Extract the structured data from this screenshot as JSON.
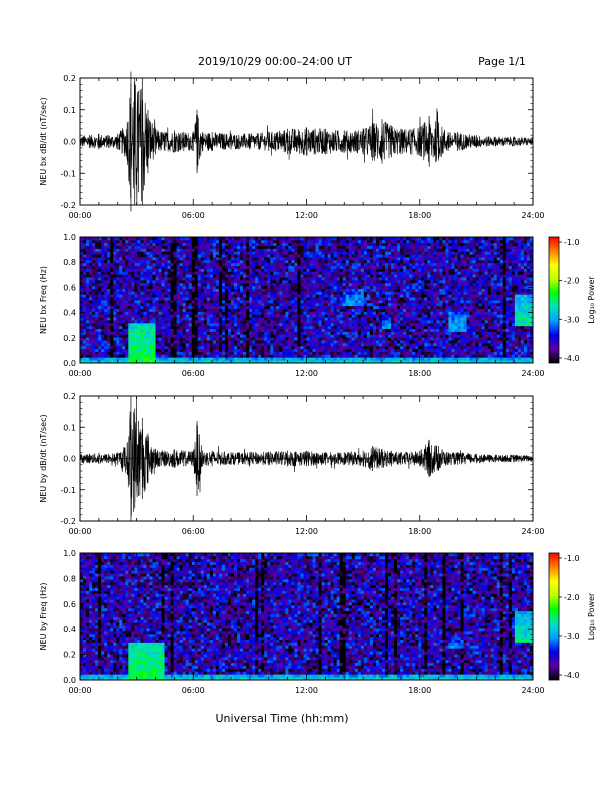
{
  "header": {
    "title": "2019/10/29  00:00–24:00 UT",
    "page": "Page 1/1"
  },
  "footer": {
    "xlabel": "Universal Time (hh:mm)"
  },
  "chart_data": [
    {
      "id": "bx-ts",
      "type": "line",
      "ylabel": "NEU bx dB/dt (nT/sec)",
      "ylim": [
        -0.2,
        0.2
      ],
      "xlim": [
        0,
        24
      ],
      "yticks": [
        "0.2",
        "0.1",
        "0.0",
        "-0.1",
        "-0.2"
      ],
      "xticks": [
        "00:00",
        "06:00",
        "12:00",
        "18:00",
        "24:00"
      ],
      "series": [
        {
          "x": [
            0,
            0.5,
            1,
            1.5,
            2,
            2.5,
            2.7,
            2.9,
            3.1,
            3.3,
            3.6,
            4,
            4.5,
            5,
            5.5,
            6,
            6.2,
            6.5,
            7,
            8,
            9,
            10,
            11,
            12,
            13,
            14,
            15,
            15.5,
            16,
            16.5,
            17,
            18,
            18.5,
            19,
            19.5,
            20,
            21,
            22,
            23,
            24
          ],
          "values": [
            0.02,
            0.02,
            0.025,
            0.02,
            0.025,
            0.06,
            0.22,
            0.2,
            0.16,
            0.2,
            0.1,
            0.04,
            0.03,
            0.035,
            0.03,
            0.03,
            0.1,
            0.03,
            0.03,
            0.025,
            0.025,
            0.03,
            0.04,
            0.045,
            0.04,
            0.035,
            0.04,
            0.06,
            0.07,
            0.05,
            0.04,
            0.045,
            0.08,
            0.06,
            0.03,
            0.03,
            0.02,
            0.015,
            0.015,
            0.012
          ]
        }
      ]
    },
    {
      "id": "bx-spec",
      "type": "heatmap",
      "ylabel": "NEU bx Freq (Hz)",
      "ylim": [
        0,
        1
      ],
      "xlim": [
        0,
        24
      ],
      "yticks": [
        "1.0",
        "0.8",
        "0.6",
        "0.4",
        "0.2",
        "0.0"
      ],
      "xticks": [
        "00:00",
        "06:00",
        "12:00",
        "18:00",
        "24:00"
      ],
      "colorbar": {
        "label": "Log₁₀ Power",
        "range": [
          -4,
          -1
        ],
        "ticks": [
          "-1.0",
          "-2.0",
          "-3.0",
          "-4.0"
        ],
        "colors": [
          "#000000",
          "#5a00a0",
          "#0000e6",
          "#00a0ff",
          "#00e0c0",
          "#00ff00",
          "#c0ff00",
          "#ffff00",
          "#ff8000",
          "#ff0000"
        ]
      },
      "features": [
        {
          "t": [
            2.5,
            4.0
          ],
          "f": [
            0.0,
            0.32
          ],
          "level": -2.4
        },
        {
          "t": [
            14.0,
            15.0
          ],
          "f": [
            0.45,
            0.6
          ],
          "level": -3.0
        },
        {
          "t": [
            16.0,
            16.5
          ],
          "f": [
            0.28,
            0.38
          ],
          "level": -3.0
        },
        {
          "t": [
            19.5,
            20.5
          ],
          "f": [
            0.25,
            0.42
          ],
          "level": -2.9
        },
        {
          "t": [
            23.0,
            24.0
          ],
          "f": [
            0.3,
            0.55
          ],
          "level": -2.6
        },
        {
          "t": [
            0,
            24
          ],
          "f": [
            0.0,
            0.04
          ],
          "level": -2.7
        }
      ]
    },
    {
      "id": "by-ts",
      "type": "line",
      "ylabel": "NEU by dB/dt (nT/sec)",
      "ylim": [
        -0.2,
        0.2
      ],
      "xlim": [
        0,
        24
      ],
      "yticks": [
        "0.2",
        "0.1",
        "0.0",
        "-0.1",
        "-0.2"
      ],
      "xticks": [
        "00:00",
        "06:00",
        "12:00",
        "18:00",
        "24:00"
      ],
      "series": [
        {
          "x": [
            0,
            0.5,
            1,
            1.5,
            2,
            2.5,
            2.7,
            2.9,
            3.1,
            3.3,
            3.6,
            4,
            4.5,
            5,
            5.5,
            6,
            6.2,
            6.5,
            7,
            8,
            9,
            10,
            11,
            12,
            13,
            14,
            15,
            15.5,
            16,
            16.5,
            17,
            18,
            18.5,
            19,
            19.5,
            20,
            21,
            22,
            23,
            24
          ],
          "values": [
            0.015,
            0.015,
            0.018,
            0.015,
            0.02,
            0.05,
            0.2,
            0.16,
            0.12,
            0.13,
            0.08,
            0.03,
            0.025,
            0.03,
            0.025,
            0.025,
            0.12,
            0.025,
            0.025,
            0.02,
            0.02,
            0.022,
            0.025,
            0.025,
            0.02,
            0.02,
            0.025,
            0.04,
            0.03,
            0.025,
            0.02,
            0.025,
            0.06,
            0.04,
            0.02,
            0.02,
            0.015,
            0.012,
            0.012,
            0.01
          ]
        }
      ]
    },
    {
      "id": "by-spec",
      "type": "heatmap",
      "ylabel": "NEU by Freq (Hz)",
      "ylim": [
        0,
        1
      ],
      "xlim": [
        0,
        24
      ],
      "yticks": [
        "1.0",
        "0.8",
        "0.6",
        "0.4",
        "0.2",
        "0.0"
      ],
      "xticks": [
        "00:00",
        "06:00",
        "12:00",
        "18:00",
        "24:00"
      ],
      "colorbar": {
        "label": "Log₁₀ Power",
        "range": [
          -4,
          -1
        ],
        "ticks": [
          "-1.0",
          "-2.0",
          "-3.0",
          "-4.0"
        ],
        "colors": [
          "#000000",
          "#5a00a0",
          "#0000e6",
          "#00a0ff",
          "#00e0c0",
          "#00ff00",
          "#c0ff00",
          "#ffff00",
          "#ff8000",
          "#ff0000"
        ]
      },
      "features": [
        {
          "t": [
            2.5,
            4.5
          ],
          "f": [
            0.0,
            0.3
          ],
          "level": -2.4
        },
        {
          "t": [
            19.5,
            20.3
          ],
          "f": [
            0.25,
            0.35
          ],
          "level": -3.0
        },
        {
          "t": [
            23.0,
            24.0
          ],
          "f": [
            0.3,
            0.55
          ],
          "level": -2.6
        },
        {
          "t": [
            0,
            24
          ],
          "f": [
            0.0,
            0.04
          ],
          "level": -2.7
        }
      ]
    }
  ]
}
